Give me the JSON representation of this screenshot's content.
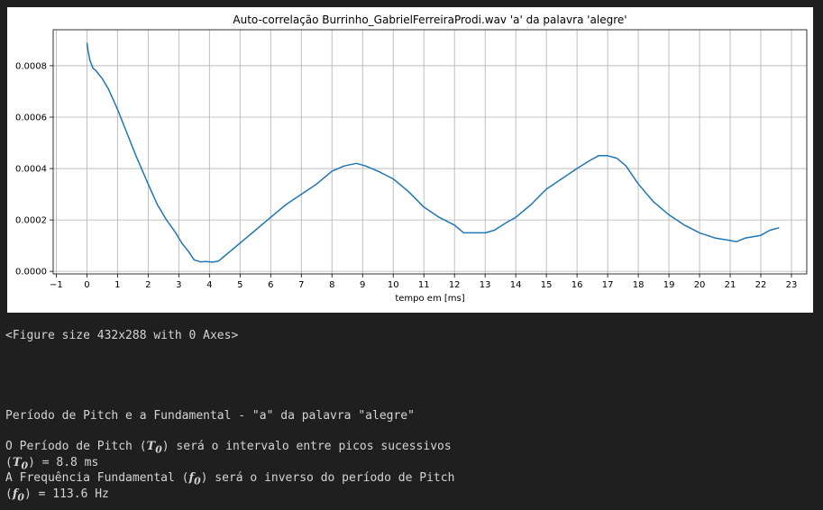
{
  "figure_repr": "<Figure size 432x288 with 0 Axes>",
  "results": {
    "heading": "Período de Pitch e a Fundamental - \"a\" da palavra \"alegre\"",
    "line1_prefix": "O Período de Pitch (",
    "line1_symbol": "T",
    "line1_sub": "0",
    "line1_suffix": ") será o intervalo entre picos sucessivos",
    "line2_prefix": "(",
    "line2_symbol": "T",
    "line2_sub": "0",
    "line2_suffix": ") = 8.8 ms",
    "line3_prefix": "A Frequência Fundamental (",
    "line3_symbol": "f",
    "line3_sub": "0",
    "line3_suffix": ") será o inverso do período de Pitch",
    "line4_prefix": "(",
    "line4_symbol": "f",
    "line4_sub": "0",
    "line4_suffix": ") = 113.6 Hz"
  },
  "colors": {
    "line": "#1f77b4",
    "grid": "#b0b0b0",
    "cell_bg": "#1f1f1f",
    "text": "#d4d4d4"
  },
  "chart_data": {
    "type": "line",
    "title": "Auto-correlação Burrinho_GabrielFerreiraProdi.wav 'a' da palavra 'alegre'",
    "xlabel": "tempo em [ms]",
    "ylabel": "",
    "xlim": [
      -1.1,
      23.5
    ],
    "ylim": [
      -1e-05,
      0.00094
    ],
    "xticks": [
      -1,
      0,
      1,
      2,
      3,
      4,
      5,
      6,
      7,
      8,
      9,
      10,
      11,
      12,
      13,
      14,
      15,
      16,
      17,
      18,
      19,
      20,
      21,
      22,
      23
    ],
    "xtick_labels": [
      "−1",
      "0",
      "1",
      "2",
      "3",
      "4",
      "5",
      "6",
      "7",
      "8",
      "9",
      "10",
      "11",
      "12",
      "13",
      "14",
      "15",
      "16",
      "17",
      "18",
      "19",
      "20",
      "21",
      "22",
      "23"
    ],
    "yticks": [
      0,
      0.0002,
      0.0004,
      0.0006,
      0.0008
    ],
    "ytick_labels": [
      "0.0000",
      "0.0002",
      "0.0004",
      "0.0006",
      "0.0008"
    ],
    "grid": true,
    "series": [
      {
        "x": [
          0,
          0.05,
          0.1,
          0.2,
          0.3,
          0.5,
          0.7,
          1.0,
          1.3,
          1.6,
          2.0,
          2.3,
          2.6,
          2.9,
          3.1,
          3.3,
          3.5,
          3.7,
          3.9,
          4.1,
          4.3,
          4.5,
          4.8,
          5.1,
          5.5,
          6.0,
          6.5,
          7.0,
          7.5,
          8.0,
          8.4,
          8.8,
          9.1,
          9.5,
          10.0,
          10.5,
          11.0,
          11.5,
          12.0,
          12.3,
          12.6,
          13.0,
          13.3,
          13.7,
          14.0,
          14.5,
          15.0,
          15.5,
          16.0,
          16.4,
          16.7,
          17.0,
          17.3,
          17.6,
          18.0,
          18.5,
          19.0,
          19.5,
          20.0,
          20.5,
          21.0,
          21.2,
          21.5,
          22.0,
          22.3,
          22.6
        ],
        "y": [
          0.00089,
          0.00085,
          0.00082,
          0.00079,
          0.00078,
          0.00075,
          0.00071,
          0.00063,
          0.00054,
          0.00045,
          0.00034,
          0.00026,
          0.0002,
          0.00015,
          0.00011,
          8e-05,
          4.5e-05,
          3.7e-05,
          3.8e-05,
          3.6e-05,
          4e-05,
          6e-05,
          9e-05,
          0.00012,
          0.00016,
          0.00021,
          0.00026,
          0.0003,
          0.00034,
          0.00039,
          0.00041,
          0.00042,
          0.00041,
          0.00039,
          0.00036,
          0.00031,
          0.00025,
          0.00021,
          0.00018,
          0.00015,
          0.00015,
          0.00015,
          0.00016,
          0.00019,
          0.00021,
          0.00026,
          0.00032,
          0.00036,
          0.0004,
          0.00043,
          0.00045,
          0.00045,
          0.00044,
          0.00041,
          0.00034,
          0.00027,
          0.00022,
          0.00018,
          0.00015,
          0.00013,
          0.00012,
          0.000115,
          0.00013,
          0.00014,
          0.00016,
          0.00017
        ]
      }
    ]
  }
}
